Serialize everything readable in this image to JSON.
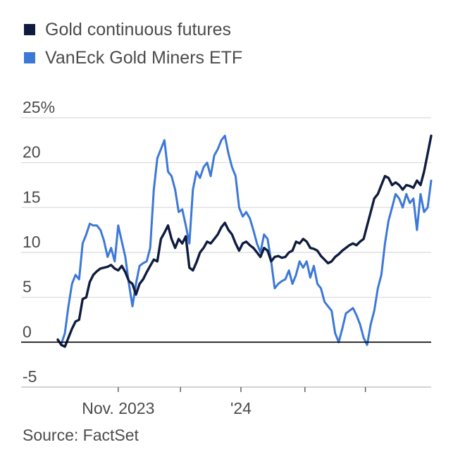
{
  "chart_data": {
    "type": "line",
    "title": "",
    "xlabel": "",
    "ylabel": "",
    "source": "Source: FactSet",
    "ylim": [
      -5,
      25
    ],
    "yticks": [
      {
        "value": 25,
        "label": "25%"
      },
      {
        "value": 20,
        "label": "20"
      },
      {
        "value": 15,
        "label": "15"
      },
      {
        "value": 10,
        "label": "10"
      },
      {
        "value": 5,
        "label": "5"
      },
      {
        "value": 0,
        "label": "0"
      },
      {
        "value": -5,
        "label": "-5"
      }
    ],
    "xlim": [
      0,
      105
    ],
    "xticks": [
      {
        "value": 17,
        "label": "Nov. 2023"
      },
      {
        "value": 34.5,
        "label": ""
      },
      {
        "value": 51.5,
        "label": "'24"
      },
      {
        "value": 69.5,
        "label": ""
      },
      {
        "value": 86.5,
        "label": ""
      }
    ],
    "legend": [
      {
        "name": "Gold continuous futures",
        "color": "#0f1c3f"
      },
      {
        "name": "VanEck Gold Miners ETF",
        "color": "#3c78d8"
      }
    ],
    "series": [
      {
        "name": "Gold continuous futures",
        "color": "#0f1c3f",
        "x": [
          0,
          1,
          2,
          3,
          4,
          5,
          6,
          7,
          8,
          9,
          10,
          11,
          12,
          13,
          14,
          15,
          16,
          17,
          18,
          19,
          20,
          21,
          22,
          23,
          24,
          25,
          26,
          27,
          28,
          29,
          30,
          31,
          32,
          33,
          34,
          35,
          36,
          37,
          38,
          39,
          40,
          41,
          42,
          43,
          44,
          45,
          46,
          47,
          48,
          49,
          50,
          51,
          52,
          53,
          54,
          55,
          56,
          57,
          58,
          59,
          60,
          61,
          62,
          63,
          64,
          65,
          66,
          67,
          68,
          69,
          70,
          71,
          72,
          73,
          74,
          75,
          76,
          77,
          78,
          79,
          80,
          81,
          82,
          83,
          84,
          85,
          86,
          87,
          88,
          89,
          90,
          91,
          92,
          93,
          94,
          95,
          96,
          97,
          98,
          99,
          100,
          101,
          102,
          103,
          104,
          105
        ],
        "values": [
          0.3,
          -0.3,
          -0.5,
          0.5,
          1.5,
          2.3,
          2.5,
          4.8,
          5.0,
          6.7,
          7.5,
          7.9,
          8.2,
          8.3,
          8.4,
          8.6,
          8.2,
          8.0,
          8.5,
          7.8,
          6.8,
          6.5,
          5.3,
          6.5,
          7.0,
          7.8,
          8.5,
          9.2,
          9.0,
          11.5,
          12.2,
          13.0,
          11.5,
          10.5,
          11.5,
          11.0,
          11.8,
          8.3,
          8.0,
          8.9,
          10.0,
          10.5,
          11.2,
          11.0,
          11.5,
          12.0,
          12.8,
          13.3,
          12.5,
          12.0,
          11.0,
          10.2,
          11.0,
          11.2,
          10.8,
          10.5,
          10.0,
          9.5,
          10.5,
          10.2,
          9.0,
          9.5,
          9.6,
          9.4,
          9.5,
          10.0,
          10.2,
          11.2,
          11.0,
          11.5,
          11.2,
          10.5,
          10.4,
          10.2,
          9.6,
          9.2,
          8.8,
          9.0,
          9.5,
          9.8,
          10.2,
          10.5,
          10.8,
          11.0,
          10.8,
          11.2,
          11.5,
          13.0,
          14.5,
          16.0,
          16.5,
          17.5,
          18.5,
          18.3,
          17.5,
          17.8,
          17.5,
          17.0,
          17.5,
          17.4,
          17.2,
          18.0,
          17.5,
          19.0,
          21.0,
          23.0
        ]
      },
      {
        "name": "VanEck Gold Miners ETF",
        "color": "#3c78d8",
        "x": [
          0,
          1,
          2,
          3,
          4,
          5,
          6,
          7,
          8,
          9,
          10,
          11,
          12,
          13,
          14,
          15,
          16,
          17,
          18,
          19,
          20,
          21,
          22,
          23,
          24,
          25,
          26,
          27,
          28,
          29,
          30,
          31,
          32,
          33,
          34,
          35,
          36,
          37,
          38,
          39,
          40,
          41,
          42,
          43,
          44,
          45,
          46,
          47,
          48,
          49,
          50,
          51,
          52,
          53,
          54,
          55,
          56,
          57,
          58,
          59,
          60,
          61,
          62,
          63,
          64,
          65,
          66,
          67,
          68,
          69,
          70,
          71,
          72,
          73,
          74,
          75,
          76,
          77,
          78,
          79,
          80,
          81,
          82,
          83,
          84,
          85,
          86,
          87,
          88,
          89,
          90,
          91,
          92,
          93,
          94,
          95,
          96,
          97,
          98,
          99,
          100,
          101,
          102,
          103,
          104,
          105
        ],
        "values": [
          0.2,
          -0.2,
          1.0,
          4.0,
          6.5,
          7.5,
          7.0,
          11.0,
          12.0,
          13.2,
          13.0,
          13.0,
          12.5,
          11.3,
          9.5,
          10.5,
          9.0,
          13.0,
          11.2,
          9.5,
          6.5,
          4.0,
          6.5,
          8.5,
          8.8,
          9.0,
          10.5,
          17.0,
          20.5,
          21.5,
          22.5,
          19.0,
          18.5,
          17.0,
          14.5,
          14.8,
          13.0,
          11.0,
          17.0,
          19.0,
          18.3,
          19.5,
          20.0,
          18.5,
          20.8,
          21.5,
          22.5,
          23.0,
          21.0,
          19.5,
          18.5,
          15.0,
          14.0,
          14.5,
          13.8,
          12.5,
          11.0,
          10.0,
          12.0,
          11.5,
          9.0,
          6.0,
          6.5,
          6.8,
          7.0,
          8.0,
          6.5,
          7.5,
          9.0,
          8.3,
          9.0,
          7.2,
          8.5,
          6.5,
          6.0,
          4.5,
          4.0,
          3.5,
          1.0,
          0.0,
          1.5,
          3.2,
          3.5,
          3.8,
          3.0,
          2.0,
          0.5,
          -0.3,
          2.0,
          3.5,
          6.0,
          7.5,
          11.0,
          13.5,
          15.0,
          16.5,
          16.0,
          15.0,
          16.5,
          15.5,
          16.0,
          12.5,
          16.5,
          14.5,
          15.0,
          18.0
        ]
      }
    ]
  }
}
